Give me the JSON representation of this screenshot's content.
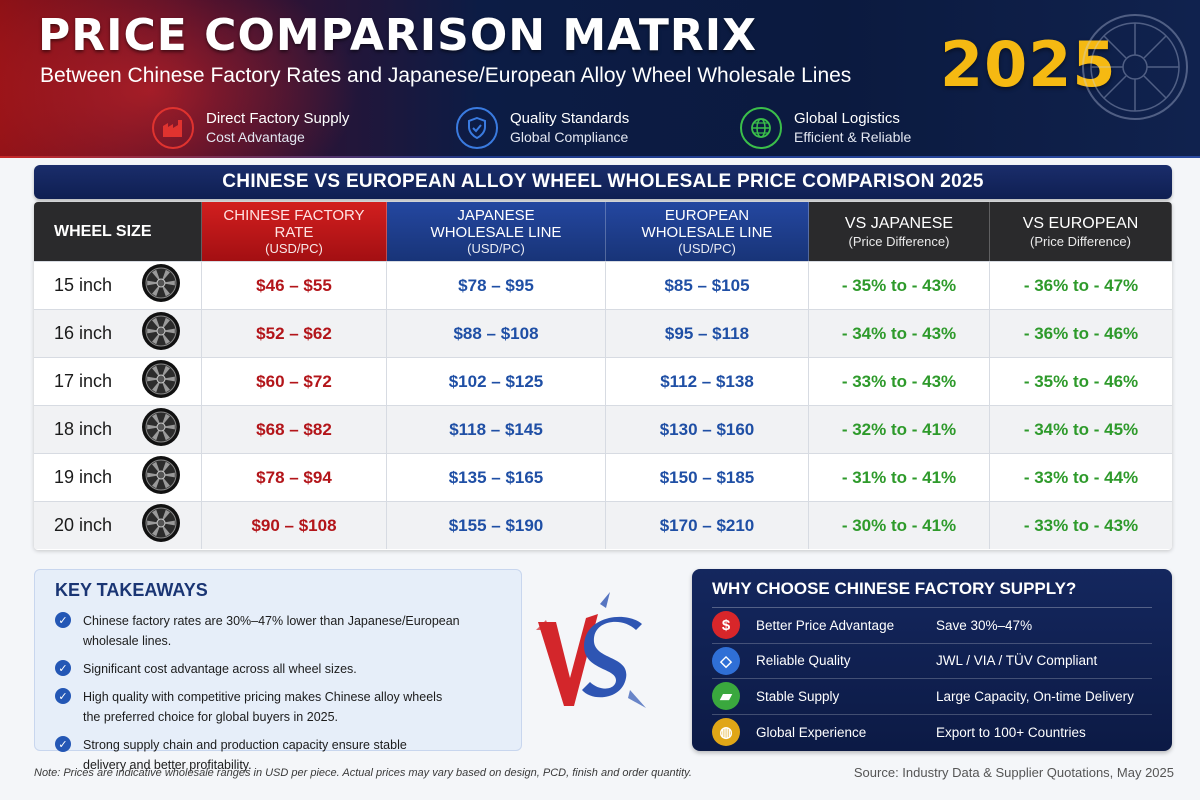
{
  "header": {
    "title": "PRICE COMPARISON MATRIX",
    "subtitle": "Between Chinese Factory Rates and Japanese/European Alloy Wheel Wholesale Lines",
    "year": "2025",
    "features": [
      {
        "icon": "factory-icon",
        "line1": "Direct Factory Supply",
        "line2": "Cost Advantage",
        "color": "#e0332f"
      },
      {
        "icon": "shield-check-icon",
        "line1": "Quality Standards",
        "line2": "Global Compliance",
        "color": "#3a7be0"
      },
      {
        "icon": "globe-icon",
        "line1": "Global Logistics",
        "line2": "Efficient & Reliable",
        "color": "#3bbf4a"
      }
    ]
  },
  "banner": "CHINESE VS EUROPEAN ALLOY WHEEL WHOLESALE PRICE COMPARISON 2025",
  "table": {
    "headers": {
      "size": "WHEEL SIZE",
      "cn_l1": "CHINESE FACTORY",
      "cn_l2": "RATE",
      "cn_l3": "(USD/PC)",
      "jp_l1": "JAPANESE",
      "jp_l2": "WHOLESALE LINE",
      "jp_l3": "(USD/PC)",
      "eu_l1": "EUROPEAN",
      "eu_l2": "WHOLESALE LINE",
      "eu_l3": "(USD/PC)",
      "vj_l1": "VS JAPANESE",
      "vj_l2": "(Price Difference)",
      "ve_l1": "VS EUROPEAN",
      "ve_l2": "(Price Difference)"
    },
    "rows": [
      {
        "size": "15 inch",
        "cn": "$46 – $55",
        "jp": "$78 – $95",
        "eu": "$85 – $105",
        "vj": "- 35% to - 43%",
        "ve": "- 36% to - 47%"
      },
      {
        "size": "16 inch",
        "cn": "$52 – $62",
        "jp": "$88 – $108",
        "eu": "$95 – $118",
        "vj": "- 34% to - 43%",
        "ve": "- 36% to - 46%"
      },
      {
        "size": "17 inch",
        "cn": "$60 – $72",
        "jp": "$102 – $125",
        "eu": "$112 – $138",
        "vj": "- 33% to - 43%",
        "ve": "- 35% to - 46%"
      },
      {
        "size": "18 inch",
        "cn": "$68 – $82",
        "jp": "$118 – $145",
        "eu": "$130 – $160",
        "vj": "- 32% to - 41%",
        "ve": "- 34% to - 45%"
      },
      {
        "size": "19 inch",
        "cn": "$78 – $94",
        "jp": "$135 – $165",
        "eu": "$150 – $185",
        "vj": "- 31% to - 41%",
        "ve": "- 33% to - 44%"
      },
      {
        "size": "20 inch",
        "cn": "$90 – $108",
        "jp": "$155 – $190",
        "eu": "$170 – $210",
        "vj": "- 30% to - 41%",
        "ve": "- 33% to - 43%"
      }
    ]
  },
  "takeaways": {
    "title": "KEY TAKEAWAYS",
    "items": [
      {
        "line1": "Chinese factory rates are 30%–47% lower than Japanese/European wholesale lines.",
        "line2": ""
      },
      {
        "line1": "Significant cost advantage across all wheel sizes.",
        "line2": ""
      },
      {
        "line1": "High quality with competitive pricing makes Chinese alloy wheels",
        "line2": "the preferred choice for global buyers in 2025."
      },
      {
        "line1": "Strong supply chain and production capacity ensure stable",
        "line2": "delivery and better profitability."
      }
    ]
  },
  "why": {
    "title": "WHY CHOOSE CHINESE FACTORY SUPPLY?",
    "rows": [
      {
        "icon": "dollar-icon",
        "glyph": "$",
        "color": "#d8262a",
        "label": "Better Price Advantage",
        "value": "Save 30%–47%"
      },
      {
        "icon": "diamond-icon",
        "glyph": "◇",
        "color": "#2f6fd6",
        "label": "Reliable Quality",
        "value": "JWL / VIA / TÜV Compliant"
      },
      {
        "icon": "truck-icon",
        "glyph": "▰",
        "color": "#3aa83e",
        "label": "Stable Supply",
        "value": "Large Capacity, On-time Delivery"
      },
      {
        "icon": "globe-icon",
        "glyph": "◍",
        "color": "#e0a617",
        "label": "Global Experience",
        "value": "Export to 100+ Countries"
      }
    ]
  },
  "footer": {
    "note": "Note: Prices are indicative wholesale ranges in USD per piece. Actual prices may vary based on design, PCD, finish and order quantity.",
    "source": "Source: Industry Data & Supplier Quotations, May 2025"
  }
}
